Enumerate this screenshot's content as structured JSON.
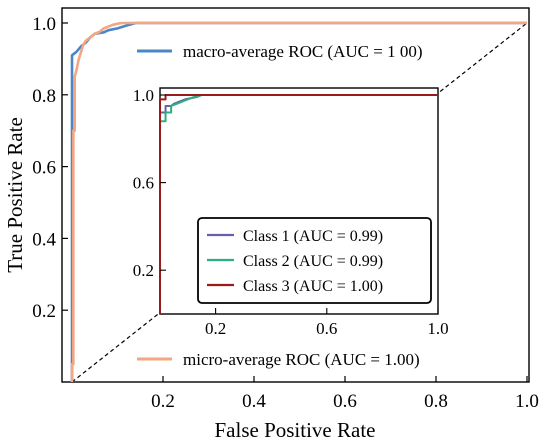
{
  "chart_data": [
    {
      "type": "line",
      "xlabel": "False Positive Rate",
      "ylabel": "True Positive Rate",
      "xlim": [
        0,
        1
      ],
      "ylim": [
        0,
        1
      ],
      "x_ticks": [
        0.2,
        0.4,
        0.6,
        0.8,
        1.0
      ],
      "x_tick_labels": [
        "0.2",
        "0.4",
        "0.6",
        "0.8",
        "1.0"
      ],
      "y_ticks": [
        0.2,
        0.4,
        0.6,
        0.8,
        1.0
      ],
      "y_tick_labels": [
        "0.2",
        "0.4",
        "0.6",
        "0.8",
        "1.0"
      ],
      "grid": false,
      "series": [
        {
          "name": "macro-average ROC (AUC = 1 00)",
          "color": "#4a86c8",
          "style": "solid",
          "x": [
            0.0,
            0.0,
            0.01,
            0.02,
            0.03,
            0.04,
            0.05,
            0.06,
            0.07,
            0.08,
            0.1,
            0.12,
            0.14,
            1.0
          ],
          "y": [
            0.0,
            0.91,
            0.92,
            0.935,
            0.945,
            0.96,
            0.97,
            0.972,
            0.974,
            0.98,
            0.985,
            0.993,
            1.0,
            1.0
          ]
        },
        {
          "name": "micro-average ROC (AUC = 1.00)",
          "color": "#f4a582",
          "style": "solid",
          "x": [
            0.0,
            0.0,
            0.003,
            0.003,
            0.006,
            0.006,
            0.01,
            0.015,
            0.02,
            0.025,
            0.03,
            0.04,
            0.05,
            0.06,
            0.07,
            0.08,
            0.09,
            0.1,
            0.11,
            0.12,
            0.13,
            1.0
          ],
          "y": [
            0.0,
            0.05,
            0.05,
            0.7,
            0.7,
            0.85,
            0.87,
            0.9,
            0.92,
            0.94,
            0.95,
            0.96,
            0.97,
            0.975,
            0.985,
            0.99,
            0.995,
            0.998,
            1.0,
            1.0,
            1.0,
            1.0
          ]
        },
        {
          "name": "",
          "color": "#000000",
          "style": "dashed",
          "x": [
            0,
            1
          ],
          "y": [
            0,
            1
          ]
        }
      ],
      "legend": [
        {
          "label": "macro-average ROC (AUC = 1 00)",
          "color": "#4a86c8",
          "position": "upper"
        },
        {
          "label": "micro-average ROC (AUC = 1.00)",
          "color": "#f4a582",
          "position": "bottom"
        }
      ]
    },
    {
      "type": "line",
      "role": "inset",
      "xlim": [
        0,
        1
      ],
      "ylim": [
        0,
        1
      ],
      "x_ticks": [
        0.2,
        0.6,
        1.0
      ],
      "x_tick_labels": [
        "0.2",
        "0.6",
        "1.0"
      ],
      "y_ticks": [
        0.2,
        0.6,
        1.0
      ],
      "y_tick_labels": [
        "0.2",
        "0.6",
        "1.0"
      ],
      "grid": false,
      "series": [
        {
          "name": "Class 1 (AUC = 0.99)",
          "color": "#6a5fa8",
          "x": [
            0.0,
            0.0,
            0.02,
            0.02,
            0.04,
            0.05,
            0.07,
            0.09,
            0.11,
            0.13,
            0.14,
            0.15,
            1.0
          ],
          "y": [
            0.0,
            0.92,
            0.92,
            0.95,
            0.95,
            0.96,
            0.97,
            0.98,
            0.985,
            0.99,
            0.995,
            1.0,
            1.0
          ]
        },
        {
          "name": "Class 2 (AUC = 0.99)",
          "color": "#2ab07f",
          "x": [
            0.0,
            0.0,
            0.02,
            0.02,
            0.04,
            0.04,
            0.06,
            0.08,
            0.1,
            0.12,
            0.14,
            0.15,
            1.0
          ],
          "y": [
            0.0,
            0.88,
            0.88,
            0.92,
            0.92,
            0.95,
            0.96,
            0.97,
            0.98,
            0.99,
            0.995,
            1.0,
            1.0
          ]
        },
        {
          "name": "Class 3 (AUC = 1.00)",
          "color": "#9b1b1b",
          "x": [
            0.0,
            0.0,
            0.02,
            0.02,
            1.0
          ],
          "y": [
            0.0,
            0.98,
            0.98,
            1.0,
            1.0
          ]
        }
      ],
      "legend": [
        {
          "label": "Class 1 (AUC = 0.99)",
          "color": "#6a5fa8"
        },
        {
          "label": "Class 2 (AUC = 0.99)",
          "color": "#2ab07f"
        },
        {
          "label": "Class 3 (AUC = 1.00)",
          "color": "#9b1b1b"
        }
      ]
    }
  ]
}
